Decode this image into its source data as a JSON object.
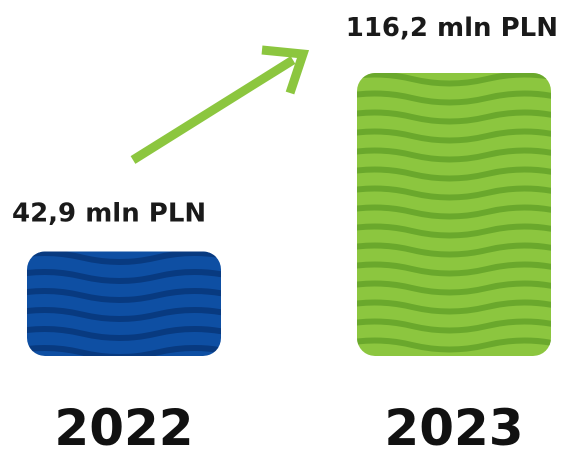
{
  "chart_data": {
    "type": "bar",
    "categories": [
      "2022",
      "2023"
    ],
    "values": [
      42.9,
      116.2
    ],
    "value_labels": [
      "42,9 mln PLN",
      "116,2 mln PLN"
    ],
    "title": "",
    "xlabel": "",
    "ylabel": "",
    "unit": "mln PLN",
    "grid": false,
    "legend": "none",
    "colors": {
      "bar_2022": "#0e4fa3",
      "bar_2022_stripe": "#083a80",
      "bar_2023": "#8cc63f",
      "bar_2023_stripe": "#6aa82c",
      "arrow": "#8cc63f"
    }
  }
}
